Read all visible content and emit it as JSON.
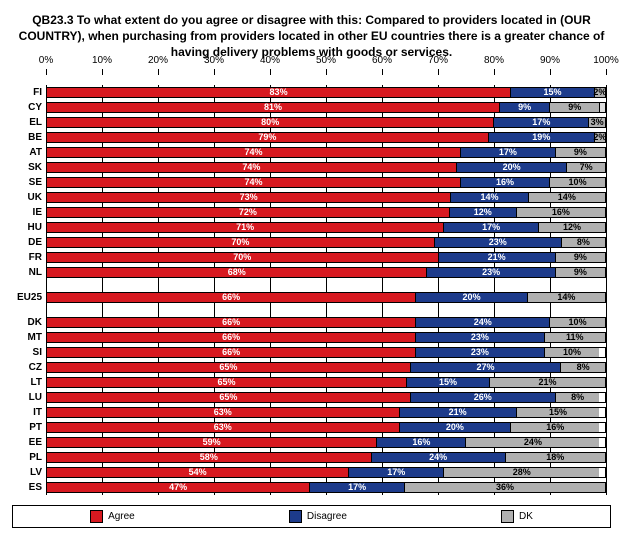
{
  "title": "QB23.3 To what extent do you agree or disagree with this:\nCompared to providers located in (OUR COUNTRY), when purchasing from providers located in other EU countries there is a greater chance of having delivery problems with goods or services.",
  "colors": {
    "agree": "#d71920",
    "disagree": "#1d3b8b",
    "dk": "#b0b0b0",
    "thin": "#dddddd"
  },
  "legend": [
    {
      "key": "agree",
      "label": "Agree"
    },
    {
      "key": "disagree",
      "label": "Disagree"
    },
    {
      "key": "dk",
      "label": "DK"
    }
  ],
  "axis": {
    "min": 0,
    "max": 100,
    "step": 10,
    "suffix": "%"
  },
  "groups": [
    [
      {
        "code": "FI",
        "agree": 83,
        "disagree": 15,
        "dk": 2
      },
      {
        "code": "CY",
        "agree": 81,
        "disagree": 9,
        "dk": 9,
        "dk2": 1
      },
      {
        "code": "EL",
        "agree": 80,
        "disagree": 17,
        "dk": 3
      },
      {
        "code": "BE",
        "agree": 79,
        "disagree": 19,
        "dk": 2
      },
      {
        "code": "AT",
        "agree": 74,
        "disagree": 17,
        "dk": 9
      },
      {
        "code": "SK",
        "agree": 74,
        "disagree": 20,
        "dk": 7
      },
      {
        "code": "SE",
        "agree": 74,
        "disagree": 16,
        "dk": 10
      },
      {
        "code": "UK",
        "agree": 73,
        "disagree": 14,
        "dk": 14
      },
      {
        "code": "IE",
        "agree": 72,
        "disagree": 12,
        "dk": 16
      },
      {
        "code": "HU",
        "agree": 71,
        "disagree": 17,
        "dk": 12
      },
      {
        "code": "DE",
        "agree": 70,
        "disagree": 23,
        "dk": 8
      },
      {
        "code": "FR",
        "agree": 70,
        "disagree": 21,
        "dk": 9
      },
      {
        "code": "NL",
        "agree": 68,
        "disagree": 23,
        "dk": 9
      }
    ],
    [
      {
        "code": "EU25",
        "agree": 66,
        "disagree": 20,
        "dk": 14
      }
    ],
    [
      {
        "code": "DK",
        "agree": 66,
        "disagree": 24,
        "dk": 10
      },
      {
        "code": "MT",
        "agree": 66,
        "disagree": 23,
        "dk": 11
      },
      {
        "code": "SI",
        "agree": 66,
        "disagree": 23,
        "dk": 10
      },
      {
        "code": "CZ",
        "agree": 65,
        "disagree": 27,
        "dk": 8
      },
      {
        "code": "LT",
        "agree": 65,
        "disagree": 15,
        "dk": 21
      },
      {
        "code": "LU",
        "agree": 65,
        "disagree": 26,
        "dk": 8
      },
      {
        "code": "IT",
        "agree": 63,
        "disagree": 21,
        "dk": 15
      },
      {
        "code": "PT",
        "agree": 63,
        "disagree": 20,
        "dk": 16
      },
      {
        "code": "EE",
        "agree": 59,
        "disagree": 16,
        "dk": 24
      },
      {
        "code": "PL",
        "agree": 58,
        "disagree": 24,
        "dk": 18
      },
      {
        "code": "LV",
        "agree": 54,
        "disagree": 17,
        "dk": 28
      },
      {
        "code": "ES",
        "agree": 47,
        "disagree": 17,
        "dk": 36
      }
    ]
  ]
}
